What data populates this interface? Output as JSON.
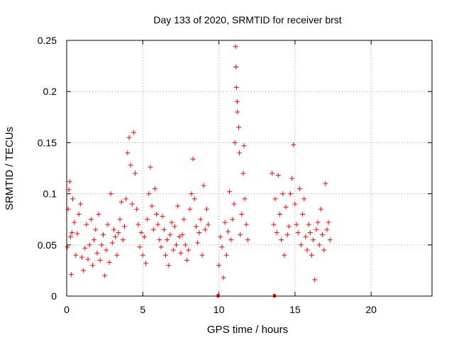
{
  "chart_data": {
    "type": "scatter",
    "title": "Day 133 of 2020, SRMTID for receiver brst",
    "xlabel": "GPS time / hours",
    "ylabel": "SRMTID / TECUs",
    "xlim": [
      0,
      24
    ],
    "ylim": [
      0,
      0.25
    ],
    "xticks": [
      0,
      5,
      10,
      15,
      20
    ],
    "yticks": [
      0,
      0.05,
      0.1,
      0.15,
      0.2,
      0.25
    ],
    "ytick_labels": [
      "0",
      "0.05",
      "0.1",
      "0.15",
      "0.2",
      "0.25"
    ],
    "grid": true,
    "marker": "+",
    "color": "#ff0000",
    "data_gaps_hours": [
      [
        12.0,
        13.5
      ]
    ],
    "zero_markers_x": [
      9.95,
      13.65
    ],
    "series": [
      {
        "name": "brst",
        "points": [
          [
            0.05,
            0.048
          ],
          [
            0.1,
            0.085
          ],
          [
            0.15,
            0.104
          ],
          [
            0.2,
            0.112
          ],
          [
            0.25,
            0.058
          ],
          [
            0.3,
            0.021
          ],
          [
            0.35,
            0.062
          ],
          [
            0.4,
            0.095
          ],
          [
            0.5,
            0.072
          ],
          [
            0.6,
            0.04
          ],
          [
            0.7,
            0.061
          ],
          [
            0.8,
            0.08
          ],
          [
            0.9,
            0.09
          ],
          [
            1.0,
            0.038
          ],
          [
            1.1,
            0.025
          ],
          [
            1.2,
            0.047
          ],
          [
            1.3,
            0.07
          ],
          [
            1.4,
            0.036
          ],
          [
            1.5,
            0.05
          ],
          [
            1.6,
            0.075
          ],
          [
            1.7,
            0.03
          ],
          [
            1.8,
            0.055
          ],
          [
            1.9,
            0.065
          ],
          [
            2.0,
            0.042
          ],
          [
            2.1,
            0.08
          ],
          [
            2.2,
            0.035
          ],
          [
            2.3,
            0.05
          ],
          [
            2.4,
            0.06
          ],
          [
            2.5,
            0.02
          ],
          [
            2.6,
            0.045
          ],
          [
            2.7,
            0.07
          ],
          [
            2.8,
            0.033
          ],
          [
            2.9,
            0.1
          ],
          [
            3.0,
            0.052
          ],
          [
            3.1,
            0.065
          ],
          [
            3.2,
            0.058
          ],
          [
            3.3,
            0.04
          ],
          [
            3.4,
            0.062
          ],
          [
            3.5,
            0.075
          ],
          [
            3.6,
            0.092
          ],
          [
            3.7,
            0.055
          ],
          [
            3.8,
            0.068
          ],
          [
            3.9,
            0.095
          ],
          [
            4.0,
            0.14
          ],
          [
            4.1,
            0.155
          ],
          [
            4.2,
            0.128
          ],
          [
            4.3,
            0.09
          ],
          [
            4.4,
            0.16
          ],
          [
            4.5,
            0.12
          ],
          [
            4.6,
            0.085
          ],
          [
            4.7,
            0.07
          ],
          [
            4.8,
            0.048
          ],
          [
            4.9,
            0.062
          ],
          [
            5.0,
            0.04
          ],
          [
            5.1,
            0.058
          ],
          [
            5.2,
            0.032
          ],
          [
            5.3,
            0.075
          ],
          [
            5.4,
            0.1
          ],
          [
            5.5,
            0.126
          ],
          [
            5.6,
            0.088
          ],
          [
            5.7,
            0.065
          ],
          [
            5.8,
            0.105
          ],
          [
            5.9,
            0.08
          ],
          [
            6.0,
            0.07
          ],
          [
            6.1,
            0.055
          ],
          [
            6.2,
            0.048
          ],
          [
            6.3,
            0.078
          ],
          [
            6.4,
            0.065
          ],
          [
            6.5,
            0.04
          ],
          [
            6.6,
            0.055
          ],
          [
            6.7,
            0.03
          ],
          [
            6.8,
            0.06
          ],
          [
            6.9,
            0.072
          ],
          [
            7.0,
            0.045
          ],
          [
            7.1,
            0.068
          ],
          [
            7.2,
            0.05
          ],
          [
            7.3,
            0.088
          ],
          [
            7.4,
            0.058
          ],
          [
            7.5,
            0.042
          ],
          [
            7.6,
            0.06
          ],
          [
            7.7,
            0.075
          ],
          [
            7.8,
            0.05
          ],
          [
            7.9,
            0.035
          ],
          [
            8.0,
            0.045
          ],
          [
            8.1,
            0.085
          ],
          [
            8.2,
            0.1
          ],
          [
            8.3,
            0.134
          ],
          [
            8.4,
            0.095
          ],
          [
            8.5,
            0.068
          ],
          [
            8.6,
            0.052
          ],
          [
            8.7,
            0.062
          ],
          [
            8.8,
            0.075
          ],
          [
            8.9,
            0.04
          ],
          [
            9.0,
            0.108
          ],
          [
            9.1,
            0.065
          ],
          [
            9.2,
            0.085
          ],
          [
            9.3,
            0.07
          ],
          [
            10.0,
            0.03
          ],
          [
            10.1,
            0.058
          ],
          [
            10.2,
            0.048
          ],
          [
            10.3,
            0.018
          ],
          [
            10.4,
            0.072
          ],
          [
            10.5,
            0.04
          ],
          [
            10.6,
            0.063
          ],
          [
            10.7,
            0.102
          ],
          [
            10.8,
            0.055
          ],
          [
            10.9,
            0.075
          ],
          [
            11.0,
            0.09
          ],
          [
            11.05,
            0.15
          ],
          [
            11.1,
            0.244
          ],
          [
            11.12,
            0.224
          ],
          [
            11.15,
            0.204
          ],
          [
            11.2,
            0.19
          ],
          [
            11.22,
            0.18
          ],
          [
            11.3,
            0.165
          ],
          [
            11.35,
            0.14
          ],
          [
            11.4,
            0.06
          ],
          [
            11.5,
            0.08
          ],
          [
            11.6,
            0.12
          ],
          [
            11.65,
            0.147
          ],
          [
            11.7,
            0.095
          ],
          [
            11.8,
            0.07
          ],
          [
            11.9,
            0.055
          ],
          [
            13.5,
            0.12
          ],
          [
            13.6,
            0.07
          ],
          [
            13.7,
            0.095
          ],
          [
            13.8,
            0.062
          ],
          [
            13.9,
            0.118
          ],
          [
            14.0,
            0.08
          ],
          [
            14.1,
            0.055
          ],
          [
            14.2,
            0.1
          ],
          [
            14.3,
            0.04
          ],
          [
            14.4,
            0.087
          ],
          [
            14.5,
            0.06
          ],
          [
            14.6,
            0.068
          ],
          [
            14.7,
            0.1
          ],
          [
            14.8,
            0.115
          ],
          [
            14.9,
            0.148
          ],
          [
            15.0,
            0.09
          ],
          [
            15.1,
            0.07
          ],
          [
            15.2,
            0.062
          ],
          [
            15.3,
            0.105
          ],
          [
            15.4,
            0.05
          ],
          [
            15.5,
            0.08
          ],
          [
            15.6,
            0.095
          ],
          [
            15.7,
            0.058
          ],
          [
            15.8,
            0.045
          ],
          [
            15.9,
            0.07
          ],
          [
            16.0,
            0.062
          ],
          [
            16.1,
            0.04
          ],
          [
            16.2,
            0.055
          ],
          [
            16.3,
            0.016
          ],
          [
            16.4,
            0.065
          ],
          [
            16.5,
            0.072
          ],
          [
            16.6,
            0.05
          ],
          [
            16.7,
            0.085
          ],
          [
            16.8,
            0.06
          ],
          [
            16.9,
            0.045
          ],
          [
            17.0,
            0.11
          ],
          [
            17.1,
            0.065
          ],
          [
            17.2,
            0.072
          ],
          [
            17.3,
            0.055
          ]
        ]
      }
    ]
  }
}
